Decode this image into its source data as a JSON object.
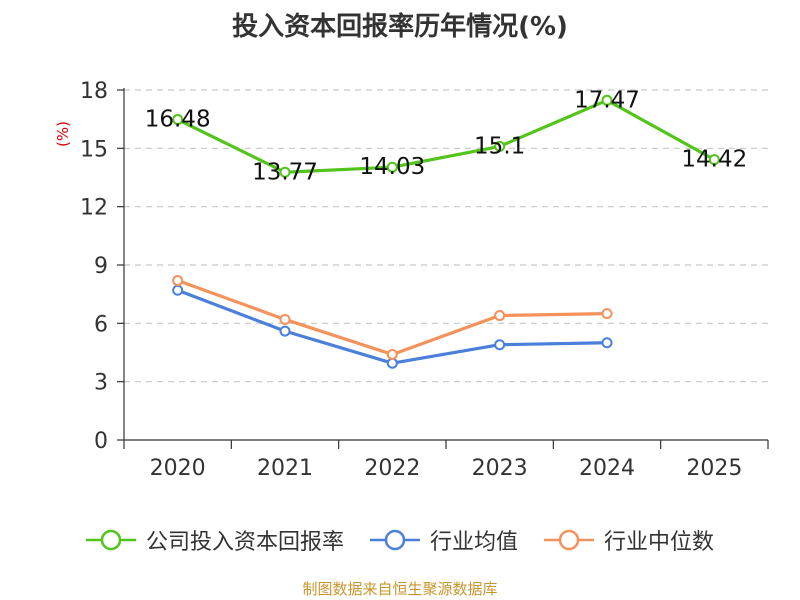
{
  "title": "投入资本回报率历年情况(%)",
  "source": "制图数据来自恒生聚源数据库",
  "chart_data": {
    "type": "line",
    "title": "投入资本回报率历年情况(%)",
    "ylabel": "(%)",
    "xlabel": "",
    "categories": [
      "2020",
      "2021",
      "2022",
      "2023",
      "2024",
      "2025"
    ],
    "ylim": [
      0,
      18
    ],
    "yticks": [
      0,
      3,
      6,
      9,
      12,
      15,
      18
    ],
    "grid": true,
    "legend_position": "bottom",
    "series": [
      {
        "name": "公司投入资本回报率",
        "color": "#52c41a",
        "values": [
          16.48,
          13.77,
          14.03,
          15.1,
          17.47,
          14.42
        ],
        "labels": [
          "16.48",
          "13.77",
          "14.03",
          "15.1",
          "17.47",
          "14.42"
        ]
      },
      {
        "name": "行业均值",
        "color": "#4a7fdc",
        "values": [
          7.7,
          5.6,
          3.95,
          4.9,
          5.0,
          null
        ]
      },
      {
        "name": "行业中位数",
        "color": "#f5915a",
        "values": [
          8.2,
          6.2,
          4.4,
          6.4,
          6.5,
          null
        ]
      }
    ]
  }
}
